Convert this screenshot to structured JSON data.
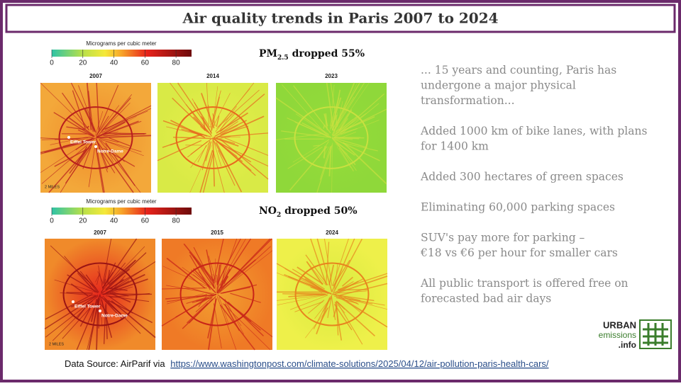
{
  "header": {
    "title": "Air quality trends in Paris 2007 to 2024"
  },
  "panels": [
    {
      "scale": {
        "label": "Micrograms per cubic meter",
        "ticks": [
          0,
          20,
          40,
          60,
          80
        ],
        "range": [
          0,
          90
        ]
      },
      "heading": {
        "prefix": "PM",
        "subscript": "2.5",
        "suffix": " dropped 55%"
      },
      "maps": [
        {
          "year": "2007",
          "labels": [
            "Eiffel Tower",
            "Notre-Dame"
          ],
          "scale_bar": "2 MILES"
        },
        {
          "year": "2014"
        },
        {
          "year": "2023"
        }
      ]
    },
    {
      "scale": {
        "label": "Micrograms per cubic meter",
        "ticks": [
          0,
          20,
          40,
          60,
          80
        ],
        "range": [
          0,
          90
        ]
      },
      "heading": {
        "prefix": "NO",
        "subscript": "2",
        "suffix": " dropped 50%"
      },
      "maps": [
        {
          "year": "2007",
          "labels": [
            "Eiffel Tower",
            "Notre-Dame"
          ],
          "scale_bar": "2 MILES"
        },
        {
          "year": "2015"
        },
        {
          "year": "2024"
        }
      ]
    }
  ],
  "bullets": [
    [
      "... 15 years and counting, Paris has",
      "undergone a major physical",
      "transformation..."
    ],
    [
      "Added 1000 km of bike lanes, with plans",
      "for 1400 km"
    ],
    [
      "Added 300 hectares of green spaces"
    ],
    [
      "Eliminating 60,000 parking spaces"
    ],
    [
      "SUV's pay more for parking –",
      "€18 vs €6 per hour for smaller cars"
    ],
    [
      "All public transport is offered free on",
      "forecasted bad air days"
    ]
  ],
  "logo": {
    "line1": "URBAN",
    "line2": "emissions",
    "line3": ".info"
  },
  "footer": {
    "prefix": "Data Source: AirParif via",
    "link": "https://www.washingtonpost.com/climate-solutions/2025/04/12/air-pollution-paris-health-cars/"
  }
}
